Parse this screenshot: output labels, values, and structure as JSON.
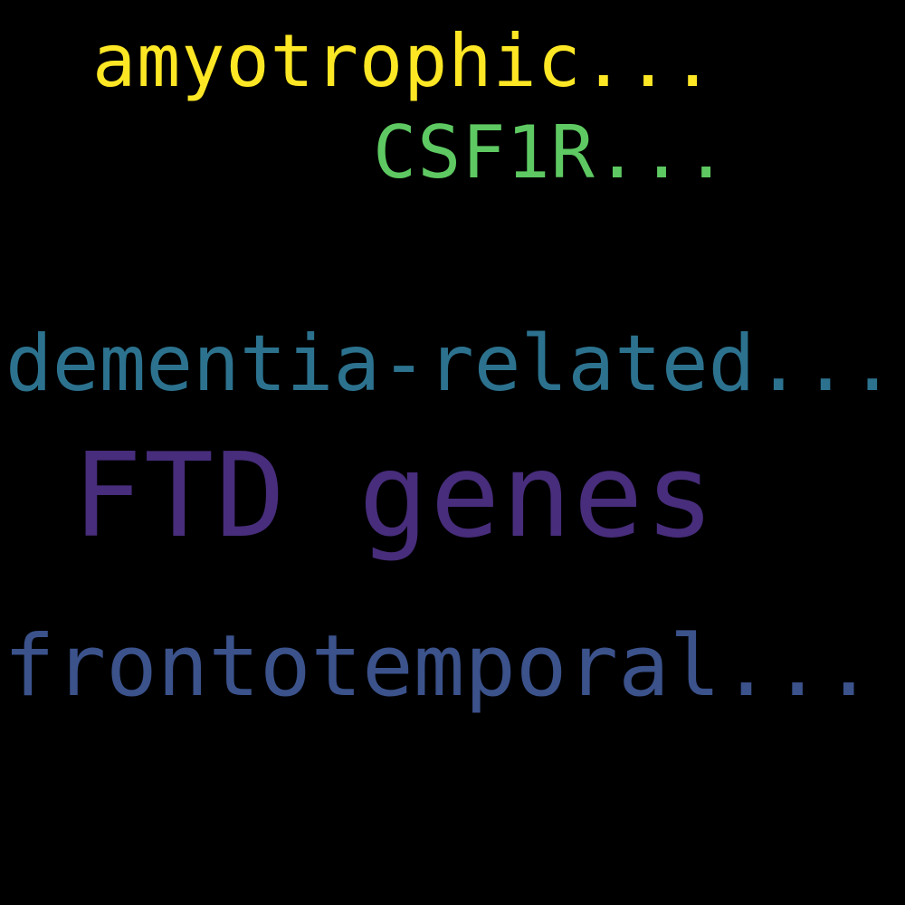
{
  "words": [
    {
      "text": "amyotrophic...",
      "color": "#fde725"
    },
    {
      "text": "CSF1R...",
      "color": "#5ec962"
    },
    {
      "text": "dementia-related...",
      "color": "#2c728e"
    },
    {
      "text": "FTD genes",
      "color": "#472d7b"
    },
    {
      "text": "frontotemporal...",
      "color": "#3b528b"
    }
  ],
  "background": "#000000"
}
